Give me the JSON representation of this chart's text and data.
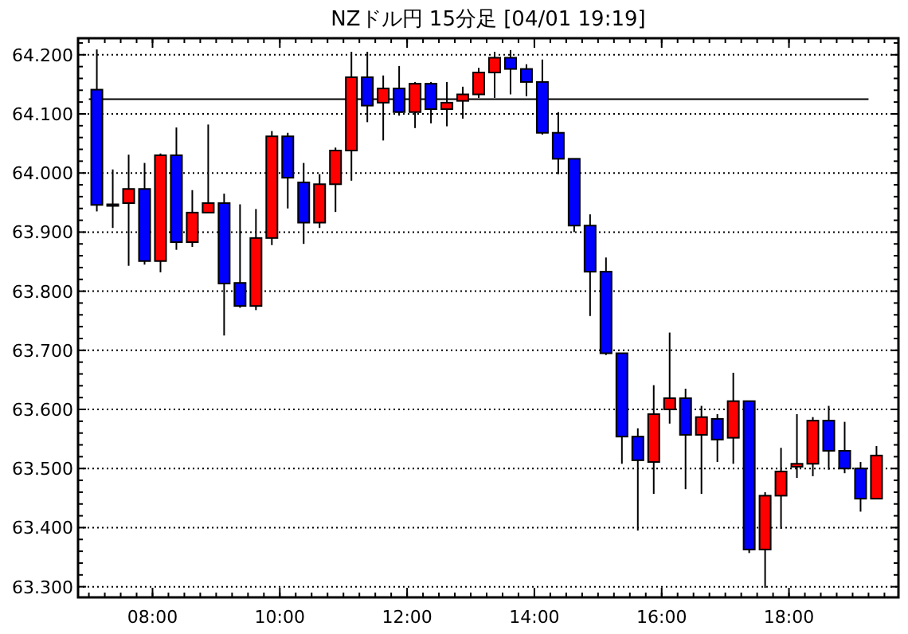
{
  "chart_data": {
    "type": "candlestick",
    "title": "NZドル円 15分足 [04/01 19:19]",
    "x": [
      7.125,
      7.375,
      7.625,
      7.875,
      8.125,
      8.375,
      8.625,
      8.875,
      9.125,
      9.375,
      9.625,
      9.875,
      10.125,
      10.375,
      10.625,
      10.875,
      11.125,
      11.375,
      11.625,
      11.875,
      12.125,
      12.375,
      12.625,
      12.875,
      13.125,
      13.375,
      13.625,
      13.875,
      14.125,
      14.375,
      14.625,
      14.875,
      15.125,
      15.375,
      15.625,
      15.875,
      16.125,
      16.375,
      16.625,
      16.875,
      17.125,
      17.375,
      17.625,
      17.875,
      18.125,
      18.375,
      18.625,
      18.875,
      19.125,
      19.375
    ],
    "ohlc": [
      [
        64.141,
        64.209,
        63.935,
        63.946
      ],
      [
        63.947,
        64.006,
        63.907,
        63.947
      ],
      [
        63.949,
        64.031,
        63.843,
        63.973
      ],
      [
        63.973,
        64.017,
        63.845,
        63.851
      ],
      [
        63.851,
        64.033,
        63.832,
        64.03
      ],
      [
        64.03,
        64.077,
        63.87,
        63.883
      ],
      [
        63.883,
        63.971,
        63.875,
        63.933
      ],
      [
        63.933,
        64.082,
        63.933,
        63.949
      ],
      [
        63.949,
        63.965,
        63.725,
        63.813
      ],
      [
        63.814,
        63.947,
        63.772,
        63.775
      ],
      [
        63.775,
        63.939,
        63.768,
        63.89
      ],
      [
        63.89,
        64.071,
        63.878,
        64.062
      ],
      [
        64.062,
        64.068,
        63.94,
        63.992
      ],
      [
        63.984,
        64.017,
        63.88,
        63.916
      ],
      [
        63.916,
        63.998,
        63.907,
        63.981
      ],
      [
        63.981,
        64.043,
        63.934,
        64.038
      ],
      [
        64.038,
        64.205,
        63.987,
        64.162
      ],
      [
        64.162,
        64.205,
        64.086,
        64.114
      ],
      [
        64.119,
        64.165,
        64.055,
        64.143
      ],
      [
        64.143,
        64.181,
        64.097,
        64.103
      ],
      [
        64.103,
        64.154,
        64.076,
        64.151
      ],
      [
        64.151,
        64.154,
        64.084,
        64.108
      ],
      [
        64.108,
        64.154,
        64.079,
        64.119
      ],
      [
        64.122,
        64.146,
        64.092,
        64.133
      ],
      [
        64.133,
        64.178,
        64.127,
        64.17
      ],
      [
        64.17,
        64.205,
        64.127,
        64.195
      ],
      [
        64.195,
        64.208,
        64.133,
        64.176
      ],
      [
        64.176,
        64.184,
        64.13,
        64.154
      ],
      [
        64.154,
        64.192,
        64.065,
        64.068
      ],
      [
        64.068,
        64.103,
        63.998,
        64.024
      ],
      [
        64.024,
        64.024,
        63.9,
        63.911
      ],
      [
        63.911,
        63.93,
        63.758,
        63.833
      ],
      [
        63.833,
        63.857,
        63.692,
        63.695
      ],
      [
        63.695,
        63.695,
        63.508,
        63.554
      ],
      [
        63.554,
        63.568,
        63.395,
        63.514
      ],
      [
        63.511,
        63.641,
        63.457,
        63.592
      ],
      [
        63.6,
        63.73,
        63.576,
        63.619
      ],
      [
        63.619,
        63.635,
        63.465,
        63.557
      ],
      [
        63.557,
        63.606,
        63.457,
        63.587
      ],
      [
        63.584,
        63.592,
        63.511,
        63.549
      ],
      [
        63.552,
        63.662,
        63.508,
        63.614
      ],
      [
        63.614,
        63.614,
        63.357,
        63.363
      ],
      [
        63.363,
        63.46,
        63.298,
        63.454
      ],
      [
        63.454,
        63.535,
        63.398,
        63.495
      ],
      [
        63.503,
        63.592,
        63.484,
        63.508
      ],
      [
        63.508,
        63.587,
        63.487,
        63.581
      ],
      [
        63.581,
        63.606,
        63.498,
        63.53
      ],
      [
        63.53,
        63.579,
        63.492,
        63.5
      ],
      [
        63.5,
        63.511,
        63.427,
        63.449
      ],
      [
        63.449,
        63.538,
        63.449,
        63.522
      ]
    ],
    "colors": [
      "#0000ff",
      "#0000ff",
      "#ff0000",
      "#0000ff",
      "#ff0000",
      "#0000ff",
      "#ff0000",
      "#ff0000",
      "#0000ff",
      "#0000ff",
      "#ff0000",
      "#ff0000",
      "#0000ff",
      "#0000ff",
      "#ff0000",
      "#ff0000",
      "#ff0000",
      "#0000ff",
      "#ff0000",
      "#0000ff",
      "#ff0000",
      "#0000ff",
      "#ff0000",
      "#ff0000",
      "#ff0000",
      "#ff0000",
      "#0000ff",
      "#0000ff",
      "#0000ff",
      "#0000ff",
      "#0000ff",
      "#0000ff",
      "#0000ff",
      "#0000ff",
      "#0000ff",
      "#ff0000",
      "#ff0000",
      "#0000ff",
      "#ff0000",
      "#0000ff",
      "#ff0000",
      "#0000ff",
      "#ff0000",
      "#ff0000",
      "#ff0000",
      "#ff0000",
      "#0000ff",
      "#0000ff",
      "#0000ff",
      "#ff0000"
    ],
    "xlim": [
      6.83,
      19.72
    ],
    "ylim": [
      63.282,
      64.228
    ],
    "xticks": [
      {
        "value": 8,
        "label": "08:00"
      },
      {
        "value": 10,
        "label": "10:00"
      },
      {
        "value": 12,
        "label": "12:00"
      },
      {
        "value": 14,
        "label": "14:00"
      },
      {
        "value": 16,
        "label": "16:00"
      },
      {
        "value": 18,
        "label": "18:00"
      }
    ],
    "yticks": [
      {
        "value": 63.3,
        "label": "63.300"
      },
      {
        "value": 63.4,
        "label": "63.400"
      },
      {
        "value": 63.5,
        "label": "63.500"
      },
      {
        "value": 63.6,
        "label": "63.600"
      },
      {
        "value": 63.7,
        "label": "63.700"
      },
      {
        "value": 63.8,
        "label": "63.800"
      },
      {
        "value": 63.9,
        "label": "63.900"
      },
      {
        "value": 64.0,
        "label": "64.000"
      },
      {
        "value": 64.1,
        "label": "64.100"
      },
      {
        "value": 64.2,
        "label": "64.200"
      }
    ],
    "grid": "y",
    "ref_lines": [
      {
        "axis": "y",
        "value": 64.125,
        "color": "#000000"
      }
    ]
  }
}
